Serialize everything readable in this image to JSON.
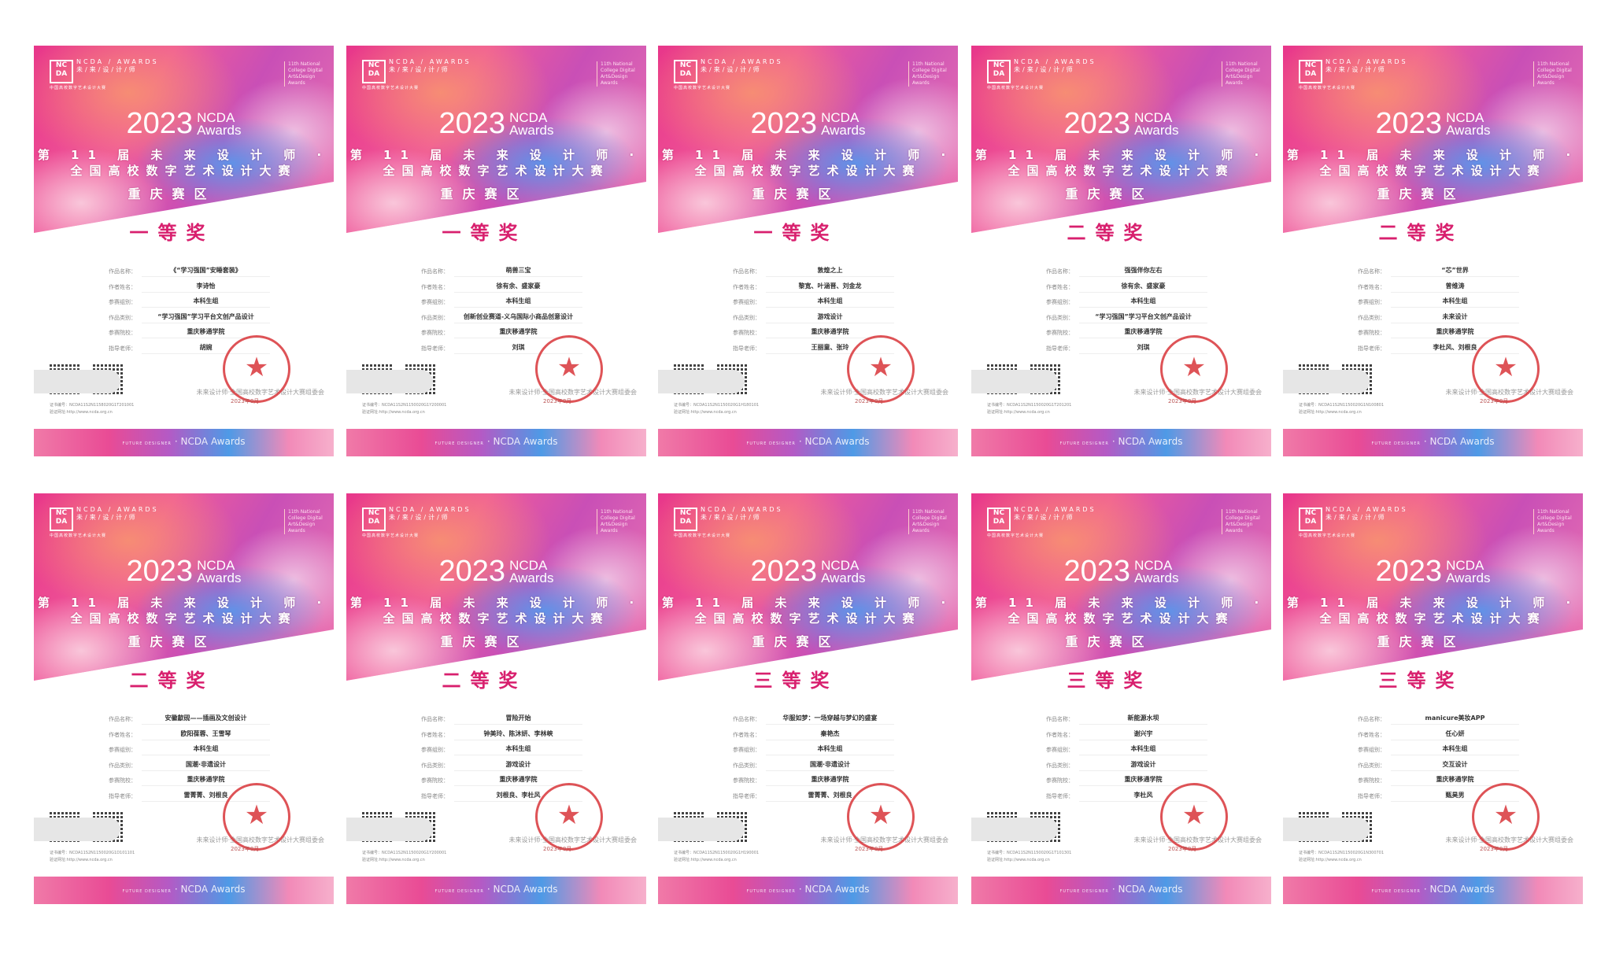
{
  "common": {
    "logo_mark": "NC DA",
    "logo_text": "NCDA / AWARDS",
    "logo_text_cn": "未/来/设/计/师",
    "logo_sub": "中国高校数字艺术设计大赛",
    "en_tag": "11th National College Digital Art&Design Awards",
    "year": "2023",
    "ncda": "NCDA",
    "awards": "Awards",
    "title_line1": "第 11 届 未 来 设 计 师 ·",
    "title_line2": "全国高校数字艺术设计大赛",
    "region": "重庆赛区",
    "labels": [
      "作品名称：",
      "作者姓名：",
      "参赛组别：",
      "作品类别：",
      "参赛院校：",
      "指导老师："
    ],
    "cert_label": "证书编号：",
    "verify": "验证网址:http://www.ncda.org.cn",
    "committee": "未来设计师·全国高校数字艺术设计大赛组委会",
    "seal_text": "未来设计师·全国高校数字艺术设计大赛组委会",
    "date": "2023年8月",
    "band_small": "FUTURE DESIGNER",
    "band_text": "· NCDA Awards"
  },
  "colors": {
    "award": "#d8206e",
    "seal": "#d9363a",
    "hero_pink": "#e8368a",
    "hero_blue": "#5a96eb"
  },
  "cards": [
    {
      "award": "一等奖",
      "fields": [
        "《“学习强国”安睡套装》",
        "李诗怡",
        "本科生组",
        "“学习强国”学习平台文创产品设计",
        "重庆移通学院",
        "胡婉"
      ],
      "cert_no": "NCDA11S2N1158020G1T201001"
    },
    {
      "award": "一等奖",
      "fields": [
        "萌兽三宝",
        "徐有余、盛家豪",
        "本科生组",
        "创新创业赛道-义乌国际小商品创意设计",
        "重庆移通学院",
        "刘琪"
      ],
      "cert_no": "NCDA11S2N1150020G1Y200001"
    },
    {
      "award": "一等奖",
      "fields": [
        "敦煌之上",
        "黎宽、叶涵晋、刘金龙",
        "本科生组",
        "游戏设计",
        "重庆移通学院",
        "王丽童、张玲"
      ],
      "cert_no": "NCDA11S2N1150020G1H180101"
    },
    {
      "award": "二等奖",
      "fields": [
        "强强伴你左右",
        "徐有余、盛家豪",
        "本科生组",
        "“学习强国”学习平台文创产品设计",
        "重庆移通学院",
        "刘琪"
      ],
      "cert_no": "NCDA11S2N1150020G1T201201"
    },
    {
      "award": "二等奖",
      "fields": [
        "“芯”世界",
        "曾维涛",
        "本科生组",
        "未来设计",
        "重庆移通学院",
        "李杜风、刘根良"
      ],
      "cert_no": "NCDA11S2N1150020G1N100801"
    },
    {
      "award": "二等奖",
      "fields": [
        "安徽歙砚——插画及文创设计",
        "欧阳葆蓉、王雪琴",
        "本科生组",
        "国潮·非遗设计",
        "重庆移通学院",
        "雷菁菁、刘根良"
      ],
      "cert_no": "NCDA11S2N1150020G1D101101"
    },
    {
      "award": "二等奖",
      "fields": [
        "冒险开始",
        "钟美玲、陈沐妍、李林峡",
        "本科生组",
        "游戏设计",
        "重庆移通学院",
        "刘根良、李杜风"
      ],
      "cert_no": "NCDA11S2N1150020G1Y200001"
    },
    {
      "award": "三等奖",
      "fields": [
        "华服如梦：一场穿越与梦幻的盛宴",
        "秦艳杰",
        "本科生组",
        "国潮·非遗设计",
        "重庆移通学院",
        "雷菁菁、刘根良"
      ],
      "cert_no": "NCDA11S2N1150020G1H190001"
    },
    {
      "award": "三等奖",
      "fields": [
        "新能源水坝",
        "谢兴宇",
        "本科生组",
        "游戏设计",
        "重庆移通学院",
        "李杜风"
      ],
      "cert_no": "NCDA11S2N1150020G1T101301"
    },
    {
      "award": "三等奖",
      "fields": [
        "manicure美妆APP",
        "任心妍",
        "本科生组",
        "交互设计",
        "重庆移通学院",
        "甄昊男"
      ],
      "cert_no": "NCDA11S2N1150020G1N300701"
    }
  ]
}
